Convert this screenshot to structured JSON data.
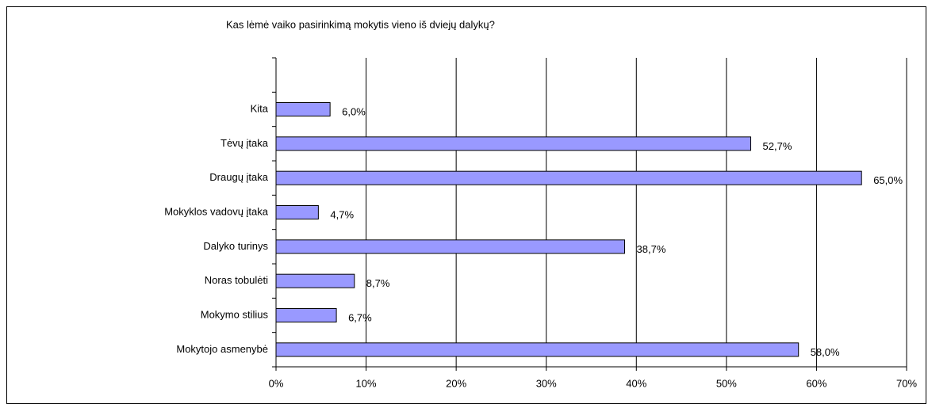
{
  "chart_data": {
    "type": "bar",
    "orientation": "horizontal",
    "title": "Kas lėmė vaiko pasirinkimą mokytis vieno iš dviejų dalykų?",
    "categories": [
      "Kita",
      "Tėvų įtaka",
      "Draugų įtaka",
      "Mokyklos vadovų įtaka",
      "Dalyko turinys",
      "Noras tobulėti",
      "Mokymo stilius",
      "Mokytojo asmenybė"
    ],
    "values": [
      6.0,
      52.7,
      65.0,
      4.7,
      38.7,
      8.7,
      6.7,
      58.0
    ],
    "value_labels": [
      "6,0%",
      "52,7%",
      "65,0%",
      "4,7%",
      "38,7%",
      "8,7%",
      "6,7%",
      "58,0%"
    ],
    "color": "#9999ff",
    "xlim": [
      0,
      70
    ],
    "xticks": [
      {
        "value": 0,
        "label": "0%"
      },
      {
        "value": 10,
        "label": "10%"
      },
      {
        "value": 20,
        "label": "20%"
      },
      {
        "value": 30,
        "label": "30%"
      },
      {
        "value": 40,
        "label": "40%"
      },
      {
        "value": 50,
        "label": "50%"
      },
      {
        "value": 60,
        "label": "60%"
      },
      {
        "value": 70,
        "label": "70%"
      }
    ],
    "grid": true
  }
}
